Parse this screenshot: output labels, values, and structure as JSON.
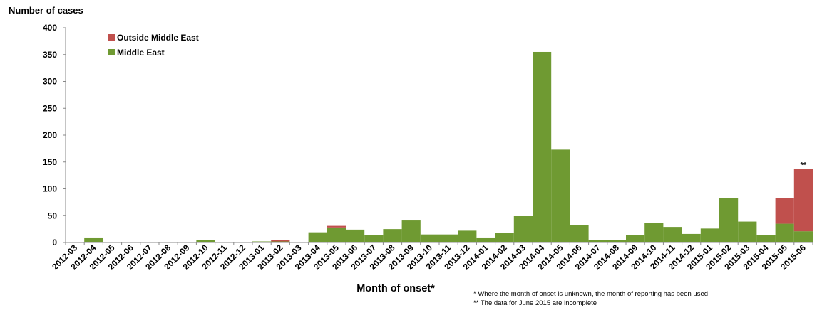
{
  "chart_data": {
    "type": "bar",
    "stacked": true,
    "ylabel": "Number of cases",
    "xlabel": "Month of onset*",
    "ylim": [
      0,
      400
    ],
    "yticks": [
      0,
      50,
      100,
      150,
      200,
      250,
      300,
      350,
      400
    ],
    "grid": false,
    "legend_position": "top-left",
    "categories": [
      "2012-03",
      "2012-04",
      "2012-05",
      "2012-06",
      "2012-07",
      "2012-08",
      "2012-09",
      "2012-10",
      "2012-11",
      "2012-12",
      "2013-01",
      "2013-02",
      "2013-03",
      "2013-04",
      "2013-05",
      "2013-06",
      "2013-07",
      "2013-08",
      "2013-09",
      "2013-10",
      "2013-11",
      "2013-12",
      "2014-01",
      "2014-02",
      "2014-03",
      "2014-04",
      "2014-05",
      "2014-06",
      "2014-07",
      "2014-08",
      "2014-09",
      "2014-10",
      "2014-11",
      "2014-12",
      "2015-01",
      "2015-02",
      "2015-03",
      "2015-04",
      "2015-05",
      "2015-06"
    ],
    "series": [
      {
        "name": "Middle East",
        "color": "#6f9a32",
        "values": [
          1,
          8,
          0,
          1,
          0,
          0,
          1,
          5,
          0,
          0,
          2,
          2,
          1,
          19,
          28,
          24,
          14,
          25,
          41,
          15,
          15,
          22,
          8,
          18,
          49,
          355,
          173,
          33,
          4,
          5,
          14,
          37,
          29,
          16,
          26,
          83,
          39,
          14,
          35,
          21
        ]
      },
      {
        "name": "Outside Middle East",
        "color": "#c0504d",
        "values": [
          0,
          0,
          0,
          0,
          0,
          0,
          0,
          0,
          0,
          0,
          0,
          2,
          0,
          0,
          3,
          0,
          0,
          0,
          0,
          0,
          0,
          0,
          0,
          0,
          0,
          0,
          0,
          0,
          0,
          0,
          0,
          0,
          0,
          0,
          0,
          0,
          0,
          0,
          48,
          116
        ]
      }
    ],
    "legend_order": [
      "Outside Middle East",
      "Middle East"
    ],
    "annotations": [
      {
        "category": "2015-06",
        "text": "**"
      }
    ],
    "footnotes": [
      "* Where the month of onset is unknown, the month of reporting has been used",
      "** The data for June 2015 are incomplete"
    ]
  }
}
